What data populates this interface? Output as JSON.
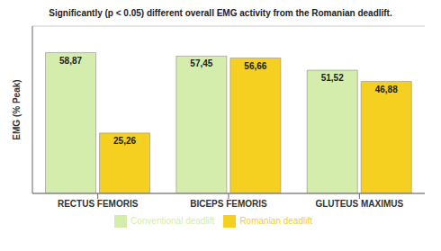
{
  "chart_data": {
    "type": "bar",
    "title": "Significantly (p < 0.05) different overall EMG activity from the Romanian deadlift.",
    "ylabel": "EMG (% Peak)",
    "categories": [
      "RECTUS FEMORIS",
      "BICEPS FEMORIS",
      "GLUTEUS MAXIMUS"
    ],
    "series": [
      {
        "name": "Conventional deadlift",
        "color": "#d4edac",
        "values": [
          58.87,
          57.45,
          51.52
        ],
        "value_labels": [
          "58,87",
          "57,45",
          "51,52"
        ]
      },
      {
        "name": "Romanian deadlift",
        "color": "#f5d020",
        "values": [
          25.26,
          56.66,
          46.88
        ],
        "value_labels": [
          "25,26",
          "56,66",
          "46,88"
        ]
      }
    ],
    "ylim": [
      0,
      70
    ],
    "yticks": [
      0,
      10,
      20,
      30,
      40,
      50,
      60,
      70
    ],
    "grid": true,
    "legend": "bottom",
    "data_labels": true,
    "tick_labels": "x"
  }
}
